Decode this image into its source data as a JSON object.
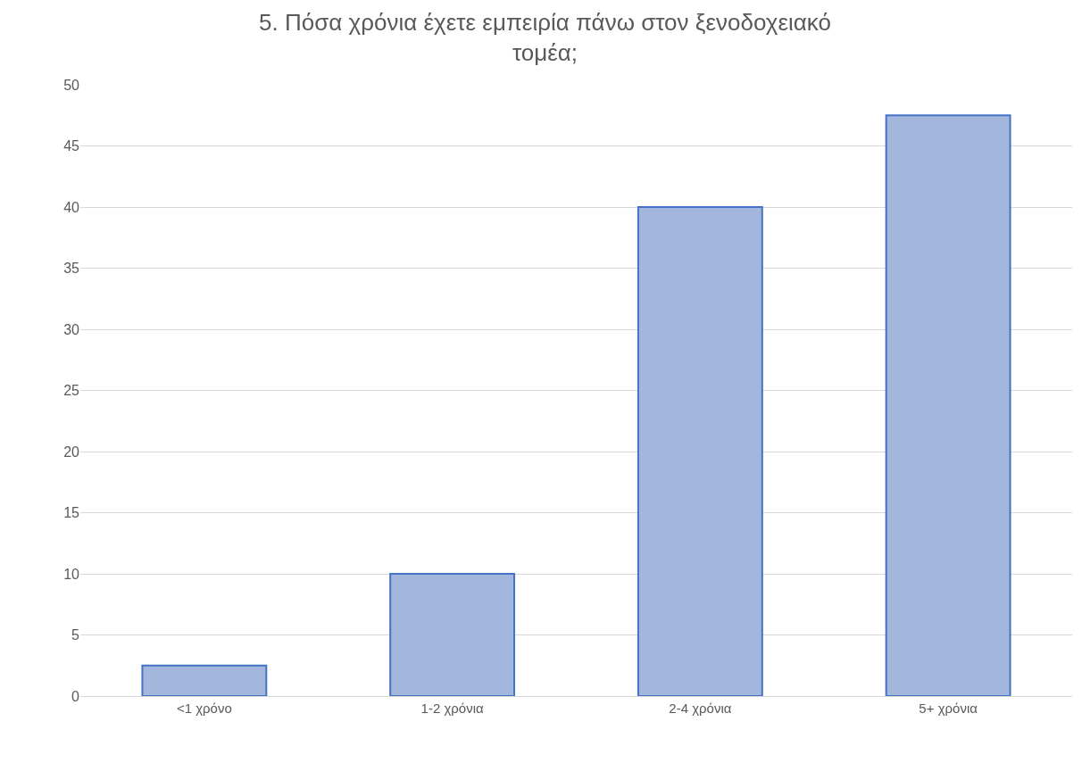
{
  "chart_data": {
    "type": "bar",
    "title": "5. Πόσα χρόνια έχετε εμπειρία πάνω στον ξενοδοχειακό τομέα;",
    "categories": [
      "<1 χρόνο",
      "1-2 χρόνια",
      "2-4 χρόνια",
      "5+ χρόνια"
    ],
    "values": [
      2.5,
      10,
      40,
      47.5
    ],
    "color": "#a3b7dc",
    "ylim": [
      0,
      50
    ],
    "yticks": [
      0,
      5,
      10,
      15,
      20,
      25,
      30,
      35,
      40,
      45,
      50
    ],
    "grid": "y",
    "legend": false
  }
}
